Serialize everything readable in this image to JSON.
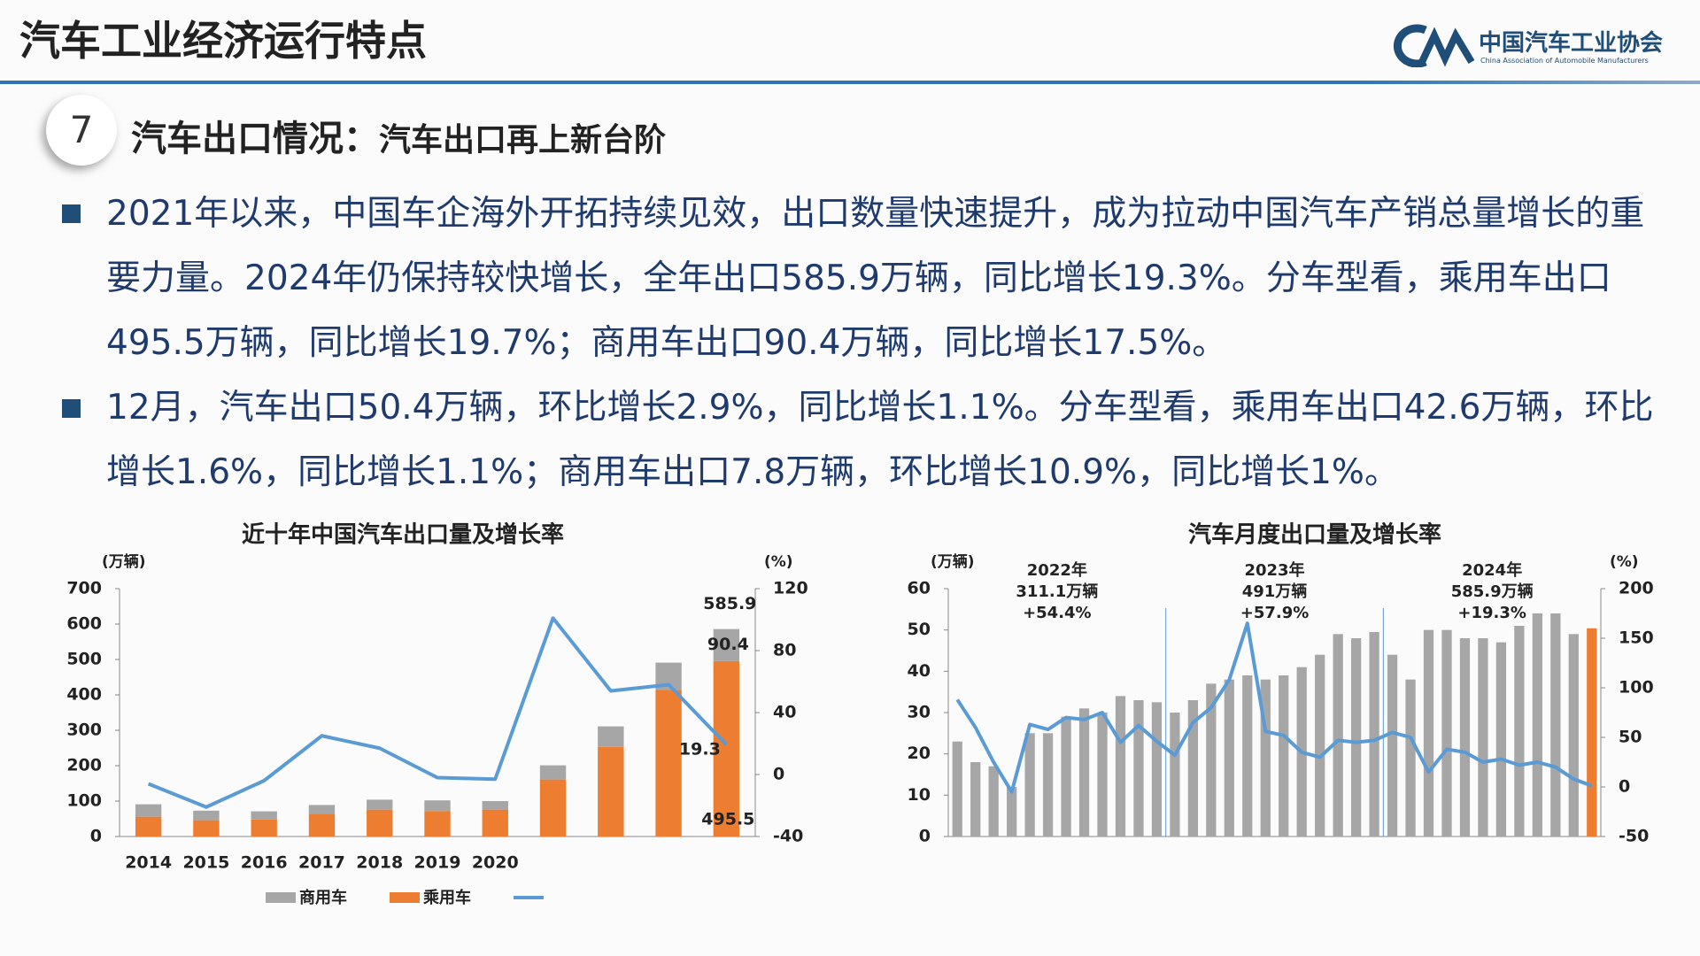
{
  "header": {
    "title": "汽车工业经济运行特点",
    "logo_name": "中国汽车工业协会",
    "logo_subtitle": "China Association of Automobile Manufacturers"
  },
  "section": {
    "number": "7",
    "heading": "汽车出口情况：",
    "subheading": "汽车出口再上新台阶"
  },
  "bullets": [
    "2021年以来，中国车企海外开拓持续见效，出口数量快速提升，成为拉动中国汽车产销总量增长的重要力量。2024年仍保持较快增长，全年出口585.9万辆，同比增长19.3%。分车型看，乘用车出口495.5万辆，同比增长19.7%；商用车出口90.4万辆，同比增长17.5%。",
    "12月，汽车出口50.4万辆，环比增长2.9%，同比增长1.1%。分车型看，乘用车出口42.6万辆，环比增长1.6%，同比增长1.1%；商用车出口7.8万辆，环比增长10.9%，同比增长1%。"
  ],
  "chart_data": [
    {
      "type": "bar",
      "stacked": true,
      "title": "近十年中国汽车出口量及增长率",
      "y_label": "(万辆)",
      "y2_label": "(%)",
      "categories": [
        "2014",
        "2015",
        "2016",
        "2017",
        "2018",
        "2019",
        "2020",
        null,
        null,
        null,
        null
      ],
      "series": [
        {
          "name": "商用车",
          "color": "#a6a6a6",
          "values": [
            35,
            27,
            23,
            25,
            28,
            30,
            24,
            40,
            58,
            77,
            90.4
          ],
          "value_labels": [
            null,
            null,
            null,
            null,
            null,
            null,
            null,
            null,
            null,
            null,
            "90.4"
          ]
        },
        {
          "name": "乘用车",
          "color": "#ed7d31",
          "values": [
            56,
            46,
            48,
            64,
            76,
            72,
            76,
            161,
            253,
            414,
            495.5
          ],
          "value_labels": [
            null,
            null,
            null,
            null,
            null,
            null,
            null,
            null,
            null,
            null,
            "495.5"
          ]
        },
        {
          "type": "line",
          "axis": "y2",
          "color": "#5b9bd5",
          "values": [
            -6,
            -21,
            -4,
            25,
            17,
            -2,
            -3,
            101,
            54,
            58,
            19.3
          ],
          "value_labels": [
            null,
            null,
            null,
            null,
            null,
            null,
            null,
            null,
            null,
            null,
            "19.3"
          ]
        }
      ],
      "totals": [
        null,
        null,
        null,
        null,
        null,
        null,
        null,
        null,
        null,
        null,
        585.9
      ],
      "ylim": [
        0,
        700
      ],
      "yticks": [
        0,
        100,
        200,
        300,
        400,
        500,
        600,
        700
      ],
      "y2lim": [
        -40,
        120
      ],
      "y2ticks": [
        -40,
        0,
        40,
        80,
        120
      ]
    },
    {
      "type": "bar",
      "title": "汽车月度出口量及增长率",
      "y_label": "(万辆)",
      "y2_label": "(%)",
      "categories": [
        null,
        null,
        null,
        null,
        null,
        null,
        null,
        null,
        null,
        null,
        null,
        null,
        null,
        null,
        null,
        null,
        null,
        null,
        null,
        null,
        null,
        null,
        null,
        null,
        null,
        null,
        null,
        null,
        null,
        null,
        null,
        null,
        null,
        null,
        null,
        null
      ],
      "series": [
        {
          "color": "#a6a6a6",
          "highlight_last": true,
          "highlight_color": "#ed7d31",
          "values": [
            23,
            18,
            17,
            12,
            25,
            25,
            29,
            31,
            30,
            34,
            33,
            32.5,
            30,
            33,
            37,
            38,
            39,
            38,
            39,
            41,
            44,
            49,
            48,
            49.5,
            44,
            38,
            50,
            50,
            48,
            48,
            47,
            51,
            54,
            54,
            49,
            50.4
          ]
        },
        {
          "type": "line",
          "axis": "y2",
          "color": "#5b9bd5",
          "values": [
            88,
            60,
            25,
            -5,
            63,
            58,
            70,
            68,
            75,
            45,
            62,
            46,
            32,
            65,
            80,
            108,
            165,
            56,
            52,
            35,
            30,
            47,
            45,
            47,
            55,
            50,
            15,
            38,
            35,
            25,
            28,
            22,
            25,
            20,
            8,
            1.1
          ]
        }
      ],
      "annotations": [
        {
          "lines": [
            "2022年",
            "311.1万辆",
            "+54.4%"
          ]
        },
        {
          "lines": [
            "2023年",
            "491万辆",
            "+57.9%"
          ]
        },
        {
          "lines": [
            "2024年",
            "585.9万辆",
            "+19.3%"
          ]
        }
      ],
      "ylim": [
        0,
        60
      ],
      "yticks": [
        0,
        10,
        20,
        30,
        40,
        50,
        60
      ],
      "y2lim": [
        -50,
        200
      ],
      "y2ticks": [
        -50,
        0,
        50,
        100,
        150,
        200
      ]
    }
  ]
}
